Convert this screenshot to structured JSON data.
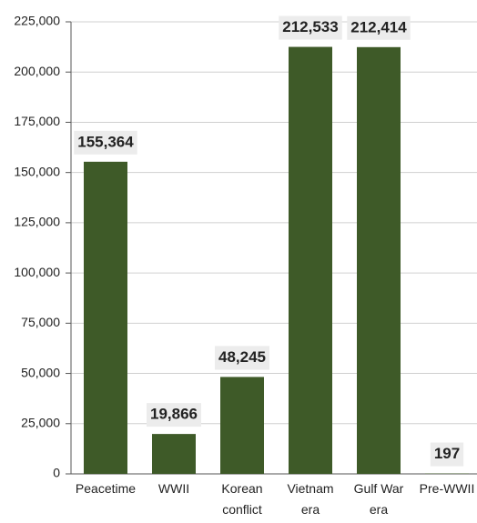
{
  "chart_data": {
    "type": "bar",
    "categories": [
      "Peacetime",
      "WWII",
      "Korean\nconflict",
      "Vietnam\nera",
      "Gulf War\nera",
      "Pre-WWII"
    ],
    "values": [
      155364,
      19866,
      48245,
      212533,
      212414,
      197
    ],
    "value_labels": [
      "155,364",
      "19,866",
      "48,245",
      "212,533",
      "212,414",
      "197"
    ],
    "color": "#3e5a28",
    "ylim": [
      0,
      225000
    ],
    "yticks": [
      0,
      {
        "value": 25000,
        "label": "25,000"
      },
      {
        "value": 50000,
        "label": "50,000"
      },
      {
        "value": 75000,
        "label": "75,000"
      },
      {
        "value": 100000,
        "label": "100,000"
      },
      {
        "value": 125000,
        "label": "125,000"
      },
      {
        "value": 150000,
        "label": "150,000"
      },
      {
        "value": 175000,
        "label": "175,000"
      },
      {
        "value": 200000,
        "label": "200,000"
      },
      {
        "value": 225000,
        "label": "225,000"
      }
    ],
    "grid": true
  }
}
